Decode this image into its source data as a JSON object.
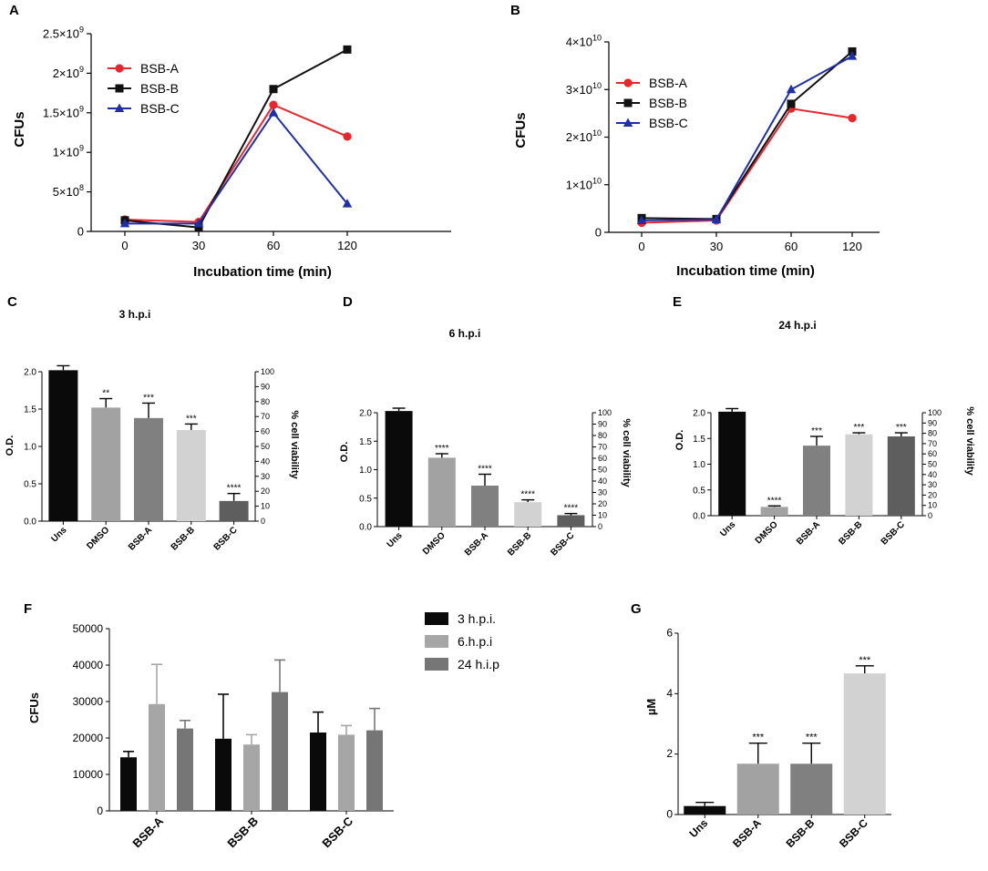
{
  "chart_data": [
    {
      "panel": "A",
      "type": "line",
      "title": "",
      "xlabel": "Incubation time (min)",
      "ylabel": "CFUs",
      "categories": [
        "0",
        "30",
        "60",
        "120"
      ],
      "yticks": [
        {
          "value": 0,
          "mant": "0",
          "exp": ""
        },
        {
          "value": 500000000,
          "mant": "5×10",
          "exp": "8"
        },
        {
          "value": 1000000000,
          "mant": "1×10",
          "exp": "9"
        },
        {
          "value": 1500000000,
          "mant": "1.5×10",
          "exp": "9"
        },
        {
          "value": 2000000000,
          "mant": "2×10",
          "exp": "9"
        },
        {
          "value": 2500000000,
          "mant": "2.5×10",
          "exp": "9"
        }
      ],
      "ylim": [
        0,
        2500000000
      ],
      "legend_position": "top-left",
      "series": [
        {
          "name": "BSB-A",
          "color": "#e8262b",
          "marker": "circle",
          "values": [
            150000000,
            120000000,
            1600000000,
            1200000000
          ]
        },
        {
          "name": "BSB-B",
          "color": "#111111",
          "marker": "square",
          "values": [
            140000000,
            50000000,
            1800000000,
            2300000000
          ]
        },
        {
          "name": "BSB-C",
          "color": "#1f2fa8",
          "marker": "triangle",
          "values": [
            100000000,
            100000000,
            1500000000,
            350000000
          ]
        }
      ]
    },
    {
      "panel": "B",
      "type": "line",
      "title": "",
      "xlabel": "Incubation time (min)",
      "ylabel": "CFUs",
      "categories": [
        "0",
        "30",
        "60",
        "120"
      ],
      "yticks": [
        {
          "value": 0,
          "mant": "0",
          "exp": ""
        },
        {
          "value": 10000000000,
          "mant": "1×10",
          "exp": "10"
        },
        {
          "value": 20000000000,
          "mant": "2×10",
          "exp": "10"
        },
        {
          "value": 30000000000,
          "mant": "3×10",
          "exp": "10"
        },
        {
          "value": 40000000000,
          "mant": "4×10",
          "exp": "10"
        }
      ],
      "ylim": [
        0,
        40000000000
      ],
      "legend_position": "top-left",
      "series": [
        {
          "name": "BSB-A",
          "color": "#e8262b",
          "marker": "circle",
          "values": [
            2000000000,
            2500000000,
            26000000000,
            24000000000
          ]
        },
        {
          "name": "BSB-B",
          "color": "#111111",
          "marker": "square",
          "values": [
            3000000000,
            2800000000,
            27000000000,
            38000000000
          ]
        },
        {
          "name": "BSB-C",
          "color": "#1f2fa8",
          "marker": "triangle",
          "values": [
            2500000000,
            2700000000,
            30000000000,
            37000000000
          ]
        }
      ]
    },
    {
      "panel": "C",
      "type": "bar",
      "title": "3 h.p.i",
      "ylabel": "O.D.",
      "y2label": "% cell viability",
      "categories": [
        "Uns",
        "DMSO",
        "BSB-A",
        "BSB-B",
        "BSB-C"
      ],
      "values": [
        2.02,
        1.52,
        1.38,
        1.22,
        0.27
      ],
      "errors": [
        0.06,
        0.12,
        0.2,
        0.08,
        0.1
      ],
      "sig": [
        "",
        "**",
        "***",
        "***",
        "****"
      ],
      "colors": [
        "#0a0a0a",
        "#a2a2a2",
        "#808080",
        "#d2d2d2",
        "#5e5e5e"
      ],
      "ylim": [
        0,
        2.0
      ],
      "yticks": [
        "0.0",
        "0.5",
        "1.0",
        "1.5",
        "2.0"
      ],
      "y2lim": [
        0,
        100
      ],
      "y2ticks": [
        "0",
        "10",
        "20",
        "30",
        "40",
        "50",
        "60",
        "70",
        "80",
        "90",
        "100"
      ]
    },
    {
      "panel": "D",
      "type": "bar",
      "title": "6 h.p.i",
      "ylabel": "O.D.",
      "y2label": "% cell viability",
      "categories": [
        "Uns",
        "DMSO",
        "BSB-A",
        "BSB-B",
        "BSB-C"
      ],
      "values": [
        2.03,
        1.21,
        0.72,
        0.43,
        0.2
      ],
      "errors": [
        0.05,
        0.07,
        0.2,
        0.04,
        0.03
      ],
      "sig": [
        "",
        "****",
        "****",
        "****",
        "****"
      ],
      "colors": [
        "#0a0a0a",
        "#a2a2a2",
        "#808080",
        "#d2d2d2",
        "#5e5e5e"
      ],
      "ylim": [
        0,
        2.0
      ],
      "yticks": [
        "0.0",
        "0.5",
        "1.0",
        "1.5",
        "2.0"
      ],
      "y2lim": [
        0,
        100
      ],
      "y2ticks": [
        "0",
        "10",
        "20",
        "30",
        "40",
        "50",
        "60",
        "70",
        "80",
        "90",
        "100"
      ]
    },
    {
      "panel": "E",
      "type": "bar",
      "title": "24 h.p.i",
      "ylabel": "O.D.",
      "y2label": "% cell viability",
      "categories": [
        "Uns",
        "DMSO",
        "BSB-A",
        "BSB-B",
        "BSB-C"
      ],
      "values": [
        2.02,
        0.17,
        1.36,
        1.58,
        1.54
      ],
      "errors": [
        0.06,
        0.02,
        0.18,
        0.03,
        0.07
      ],
      "sig": [
        "",
        "****",
        "***",
        "***",
        "***"
      ],
      "colors": [
        "#0a0a0a",
        "#a2a2a2",
        "#808080",
        "#d2d2d2",
        "#5e5e5e"
      ],
      "ylim": [
        0,
        2.0
      ],
      "yticks": [
        "0.0",
        "0.5",
        "1.0",
        "1.5",
        "2.0"
      ],
      "y2lim": [
        0,
        100
      ],
      "y2ticks": [
        "0",
        "10",
        "20",
        "30",
        "40",
        "50",
        "60",
        "70",
        "80",
        "90",
        "100"
      ]
    },
    {
      "panel": "F",
      "type": "bar",
      "title": "",
      "ylabel": "CFUs",
      "categories": [
        "BSB-A",
        "BSB-B",
        "BSB-C"
      ],
      "ylim": [
        0,
        50000
      ],
      "yticks": [
        "0",
        "10000",
        "20000",
        "30000",
        "40000",
        "50000"
      ],
      "legend_position": "right",
      "series": [
        {
          "name": "3 h.p.i.",
          "color": "#0a0a0a",
          "values": [
            14700,
            19800,
            21500
          ],
          "errors": [
            1600,
            12200,
            5600
          ]
        },
        {
          "name": "6.h.p.i",
          "color": "#a6a6a6",
          "values": [
            29300,
            18200,
            20900
          ],
          "errors": [
            10900,
            2700,
            2500
          ]
        },
        {
          "name": "24 h.i.p",
          "color": "#767676",
          "values": [
            22600,
            32600,
            22100
          ],
          "errors": [
            2200,
            8800,
            6000
          ]
        }
      ]
    },
    {
      "panel": "G",
      "type": "bar",
      "title": "",
      "ylabel": "µM",
      "categories": [
        "Uns",
        "BSB-A",
        "BSB-B",
        "BSB-C"
      ],
      "values": [
        0.28,
        1.68,
        1.68,
        4.67
      ],
      "errors": [
        0.12,
        0.68,
        0.68,
        0.25
      ],
      "sig": [
        "",
        "***",
        "***",
        "***"
      ],
      "colors": [
        "#0a0a0a",
        "#a2a2a2",
        "#808080",
        "#d2d2d2"
      ],
      "ylim": [
        0,
        6
      ],
      "yticks": [
        "0",
        "2",
        "4",
        "6"
      ]
    }
  ]
}
